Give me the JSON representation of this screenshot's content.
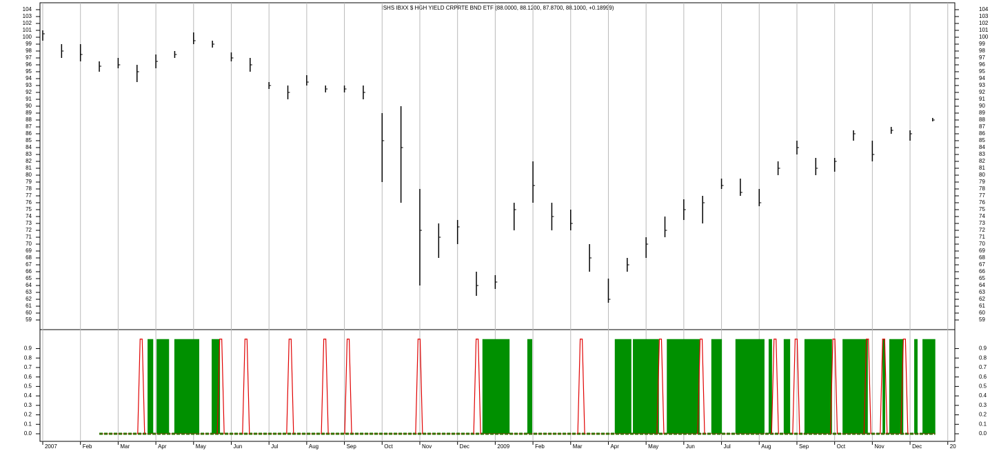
{
  "chart_data": {
    "type": "ohlc",
    "title": "ISHS IBXX $ HGH YIELD CRPRTE BND ETF (88.0000, 88.1200, 87.8700, 88.1000, +0.18999)",
    "xlim": [
      -0.073,
      24.187
    ],
    "xticks": [
      {
        "value": 0,
        "label": "2007"
      },
      {
        "value": 1,
        "label": "Feb"
      },
      {
        "value": 2,
        "label": "Mar"
      },
      {
        "value": 3,
        "label": "Apr"
      },
      {
        "value": 4,
        "label": "May"
      },
      {
        "value": 5,
        "label": "Jun"
      },
      {
        "value": 6,
        "label": "Jul"
      },
      {
        "value": 7,
        "label": "Aug"
      },
      {
        "value": 8,
        "label": "Sep"
      },
      {
        "value": 9,
        "label": "Oct"
      },
      {
        "value": 10,
        "label": "Nov"
      },
      {
        "value": 11,
        "label": "Dec"
      },
      {
        "value": 12,
        "label": "2009"
      },
      {
        "value": 13,
        "label": "Feb"
      },
      {
        "value": 14,
        "label": "Mar"
      },
      {
        "value": 15,
        "label": "Apr"
      },
      {
        "value": 16,
        "label": "May"
      },
      {
        "value": 17,
        "label": "Jun"
      },
      {
        "value": 18,
        "label": "Jul"
      },
      {
        "value": 19,
        "label": "Aug"
      },
      {
        "value": 20,
        "label": "Sep"
      },
      {
        "value": 21,
        "label": "Oct"
      },
      {
        "value": 22,
        "label": "Nov"
      },
      {
        "value": 23,
        "label": "Dec"
      },
      {
        "value": 24,
        "label": "20"
      }
    ],
    "grid": true,
    "ylim": [
      57.6,
      105
    ],
    "yticks": [
      59,
      60,
      61,
      62,
      63,
      64,
      65,
      66,
      67,
      68,
      69,
      70,
      71,
      72,
      73,
      74,
      75,
      76,
      77,
      78,
      79,
      80,
      81,
      82,
      83,
      84,
      85,
      86,
      87,
      88,
      89,
      90,
      91,
      92,
      93,
      94,
      95,
      96,
      97,
      98,
      99,
      100,
      101,
      102,
      103,
      104
    ],
    "price": {
      "color": "#000000",
      "x": [
        0,
        0.5,
        1,
        1.5,
        2,
        2.5,
        3,
        3.5,
        4,
        4.5,
        5,
        5.5,
        6,
        6.5,
        7,
        7.5,
        8,
        8.5,
        9,
        9.5,
        10,
        10.5,
        11,
        11.5,
        12,
        12.5,
        13,
        13.5,
        14,
        14.5,
        15,
        15.5,
        16,
        16.5,
        17,
        17.5,
        18,
        18.5,
        19,
        19.5,
        20,
        20.5,
        21,
        21.5,
        22,
        22.5,
        23,
        23.6
      ],
      "high": [
        101,
        99,
        99,
        96.5,
        97,
        96,
        97.5,
        98,
        100.7,
        99.5,
        97.8,
        97,
        93.5,
        93,
        94.5,
        93,
        93,
        93,
        89,
        90,
        78,
        73,
        73.5,
        66,
        65.5,
        76,
        82,
        76,
        75,
        70,
        65,
        68,
        71,
        74,
        76.5,
        77,
        79.5,
        79.5,
        78,
        82,
        85,
        82.5,
        82.5,
        86.5,
        85,
        87,
        86.5,
        88.3
      ],
      "low": [
        99.5,
        97,
        96.5,
        95,
        95.5,
        93.5,
        95.5,
        97,
        99,
        98.5,
        96.5,
        95,
        92.5,
        91,
        93,
        92,
        92,
        91,
        79,
        76,
        64,
        68,
        70,
        62.5,
        63.5,
        72,
        76,
        72,
        72,
        66,
        61.5,
        66,
        68,
        71,
        73.5,
        73,
        78,
        77,
        75.5,
        80,
        83,
        80,
        80.5,
        85,
        82,
        86,
        85,
        87.8
      ],
      "close": [
        100.5,
        98,
        97.5,
        95.8,
        96,
        95,
        96.5,
        97.5,
        99.5,
        99,
        97,
        96,
        93,
        92,
        93.5,
        92.5,
        92.5,
        92,
        85,
        84,
        72,
        71,
        72.5,
        64,
        64.5,
        75,
        78.5,
        74,
        73,
        68,
        62,
        67,
        70,
        72,
        75,
        76,
        78.5,
        77.5,
        76,
        81,
        84,
        81,
        82,
        86,
        83,
        86.5,
        86,
        88
      ]
    },
    "y2lim": [
      -0.08,
      1.1
    ],
    "y2ticks": [
      {
        "value": 0,
        "label": "0.0"
      },
      0.1,
      0.2,
      0.3,
      0.4,
      0.5,
      0.6,
      0.7,
      0.8,
      0.9
    ],
    "baseline": {
      "start": 1.5,
      "end": 23.67,
      "value": 0
    },
    "green": {
      "color": "#009000",
      "starts": [
        2.78,
        3.02,
        3.49,
        4.48,
        11.66,
        12.85,
        15.17,
        15.65,
        16.55,
        17.73,
        18.37,
        19.25,
        19.65,
        20.2,
        21.21,
        22.27,
        22.45,
        23.11,
        23.33
      ],
      "ends": [
        2.93,
        3.35,
        4.15,
        4.7,
        12.38,
        12.98,
        15.61,
        16.34,
        17.42,
        18.01,
        19.14,
        19.34,
        19.82,
        20.93,
        21.88,
        22.34,
        22.82,
        23.2,
        23.67
      ],
      "values": [
        1,
        1,
        1,
        1,
        1,
        1,
        1,
        1,
        1,
        1,
        1,
        1,
        1,
        1,
        1,
        1,
        1,
        1,
        1
      ]
    },
    "red": {
      "color": "#e00000",
      "x": [
        2.61,
        4.72,
        5.39,
        6.56,
        7.48,
        8.1,
        9.98,
        11.52,
        14.28,
        16.38,
        17.46,
        19.42,
        19.98,
        20.98,
        21.87,
        22.3,
        22.85
      ],
      "values": [
        1,
        1,
        1,
        1,
        1,
        1,
        1,
        1,
        1,
        1,
        1,
        1,
        1,
        1,
        1,
        1,
        1
      ]
    }
  }
}
